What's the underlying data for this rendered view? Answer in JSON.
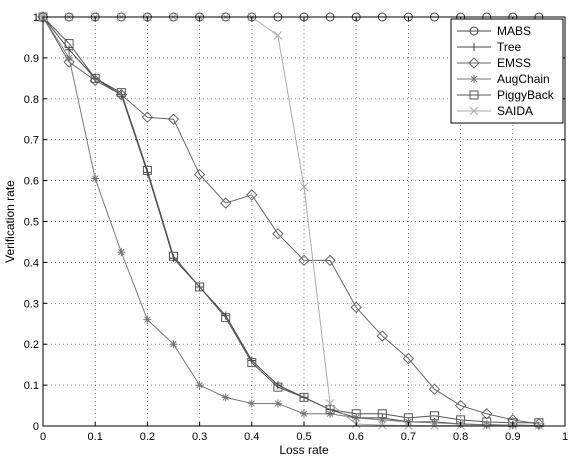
{
  "chart_data": {
    "type": "line",
    "title": "",
    "xlabel": "Loss rate",
    "ylabel": "Verification rate",
    "xlim": [
      0,
      1
    ],
    "ylim": [
      0,
      1
    ],
    "xticks": [
      0,
      0.1,
      0.2,
      0.3,
      0.4,
      0.5,
      0.6,
      0.7,
      0.8,
      0.9,
      1
    ],
    "yticks": [
      0,
      0.1,
      0.2,
      0.3,
      0.4,
      0.5,
      0.6,
      0.7,
      0.8,
      0.9,
      1
    ],
    "grid": true,
    "legend_position": "top-right",
    "x": [
      0,
      0.05,
      0.1,
      0.15,
      0.2,
      0.25,
      0.3,
      0.35,
      0.4,
      0.45,
      0.5,
      0.55,
      0.6,
      0.65,
      0.7,
      0.75,
      0.8,
      0.85,
      0.9,
      0.95
    ],
    "series": [
      {
        "name": "MABS",
        "marker": "circle",
        "color": "#444444",
        "values": [
          1,
          1,
          1,
          1,
          1,
          1,
          1,
          1,
          1,
          1,
          1,
          1,
          1,
          1,
          1,
          1,
          1,
          1,
          1,
          1
        ]
      },
      {
        "name": "Tree",
        "marker": "plus",
        "color": "#444444",
        "values": [
          1,
          0.92,
          0.85,
          0.81,
          0.62,
          0.41,
          0.34,
          0.27,
          0.16,
          0.1,
          0.07,
          0.04,
          0.02,
          0.02,
          0.01,
          0.01,
          0.005,
          0.003,
          0.002,
          0.001
        ]
      },
      {
        "name": "EMSS",
        "marker": "diamond",
        "color": "#666666",
        "values": [
          1,
          0.89,
          0.845,
          0.81,
          0.755,
          0.75,
          0.615,
          0.545,
          0.565,
          0.47,
          0.405,
          0.405,
          0.29,
          0.22,
          0.165,
          0.09,
          0.05,
          0.03,
          0.015,
          0.005
        ]
      },
      {
        "name": "AugChain",
        "marker": "asterisk",
        "color": "#777777",
        "values": [
          1,
          0.9,
          0.605,
          0.425,
          0.26,
          0.2,
          0.1,
          0.07,
          0.055,
          0.055,
          0.03,
          0.03,
          0.02,
          0.015,
          0.01,
          0.008,
          0.005,
          0.003,
          0.002,
          0.001
        ]
      },
      {
        "name": "PiggyBack",
        "marker": "square",
        "color": "#555555",
        "values": [
          1,
          0.935,
          0.85,
          0.815,
          0.625,
          0.415,
          0.34,
          0.265,
          0.155,
          0.095,
          0.07,
          0.04,
          0.03,
          0.03,
          0.02,
          0.025,
          0.015,
          0.01,
          0.008,
          0.008
        ]
      },
      {
        "name": "SAIDA",
        "marker": "x",
        "color": "#aaaaaa",
        "values": [
          1,
          1,
          1,
          1,
          1,
          1,
          1,
          1,
          1,
          0.955,
          0.585,
          0.055,
          0.005,
          0.002,
          0.001,
          0.001,
          0.001,
          0.001,
          0.001,
          0.001
        ]
      }
    ]
  }
}
